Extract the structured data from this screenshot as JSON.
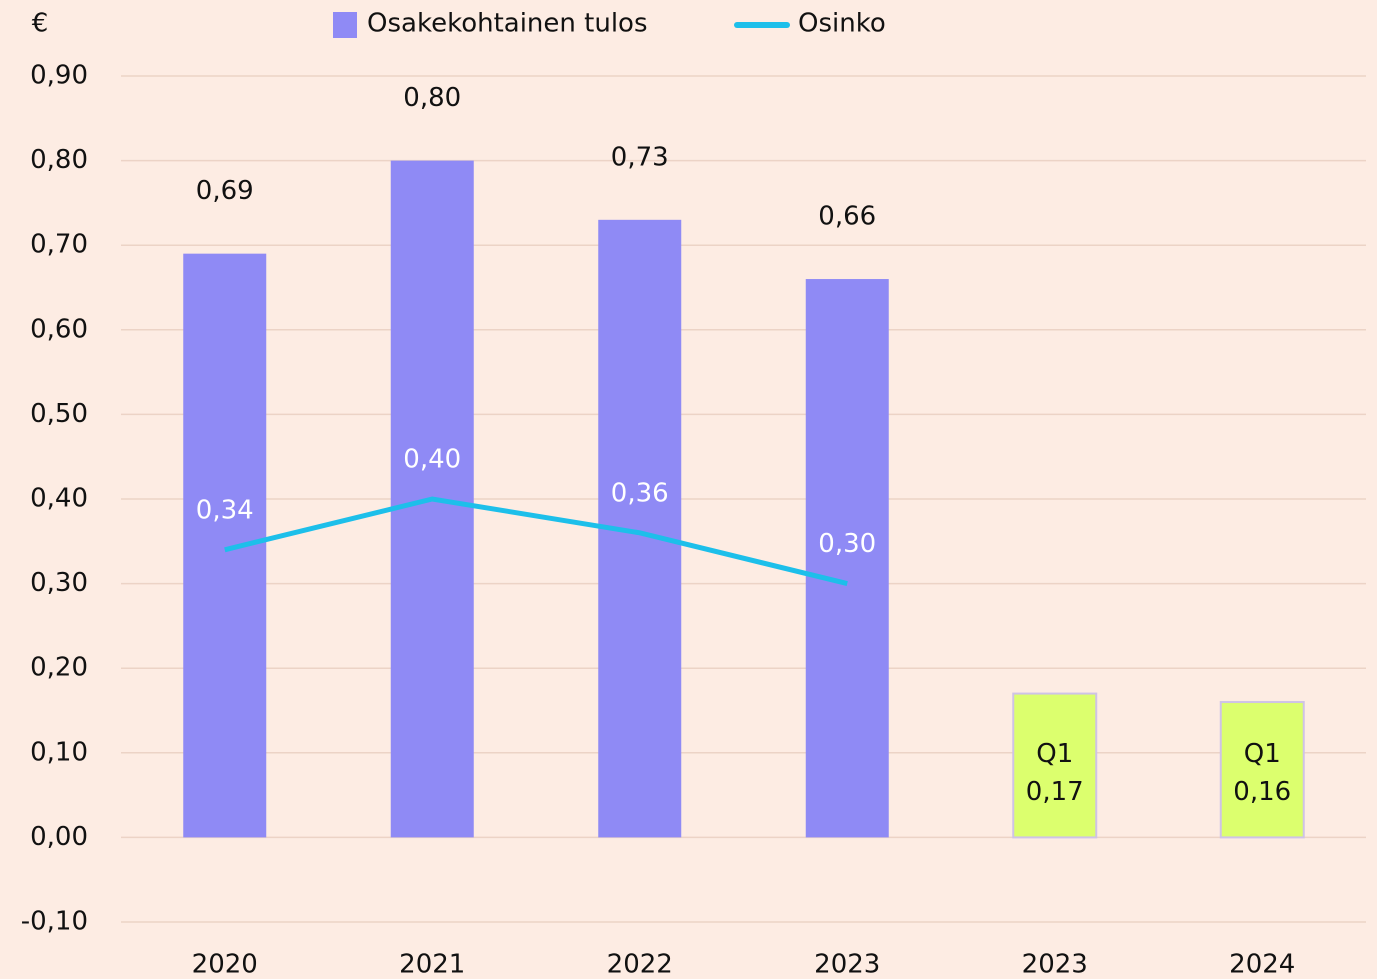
{
  "chart_data": {
    "type": "bar_line",
    "y_label": "€",
    "categories": [
      "2020",
      "2021",
      "2022",
      "2023",
      "2023",
      "2024"
    ],
    "ylim": [
      -0.1,
      0.9
    ],
    "yticks": [
      {
        "value": 0.9,
        "label": "0,90"
      },
      {
        "value": 0.8,
        "label": "0,80"
      },
      {
        "value": 0.7,
        "label": "0,70"
      },
      {
        "value": 0.6,
        "label": "0,60"
      },
      {
        "value": 0.5,
        "label": "0,50"
      },
      {
        "value": 0.4,
        "label": "0,40"
      },
      {
        "value": 0.3,
        "label": "0,30"
      },
      {
        "value": 0.2,
        "label": "0,20"
      },
      {
        "value": 0.1,
        "label": "0,10"
      },
      {
        "value": 0,
        "label": "0,00"
      },
      {
        "value": -0.1,
        "label": "-0,10"
      }
    ],
    "grid": true,
    "series": [
      {
        "name": "Osakekohtainen tulos",
        "kind": "bar",
        "color": "#8f8af5",
        "colors": [
          "#8f8af5",
          "#8f8af5",
          "#8f8af5",
          "#8f8af5",
          "#dcff6e",
          "#dcff6e"
        ],
        "values": [
          0.69,
          0.8,
          0.73,
          0.66,
          0.17,
          0.16
        ],
        "value_labels": [
          "0,69",
          "0,80",
          "0,73",
          "0,66",
          "0,17",
          "0,16"
        ],
        "annotations": [
          null,
          null,
          null,
          null,
          "Q1",
          "Q1"
        ]
      },
      {
        "name": "Osinko",
        "kind": "line",
        "color": "#1dbfea",
        "values": [
          0.34,
          0.4,
          0.36,
          0.3,
          null,
          null
        ],
        "value_labels": [
          "0,34",
          "0,40",
          "0,36",
          "0,30",
          null,
          null
        ]
      }
    ]
  }
}
